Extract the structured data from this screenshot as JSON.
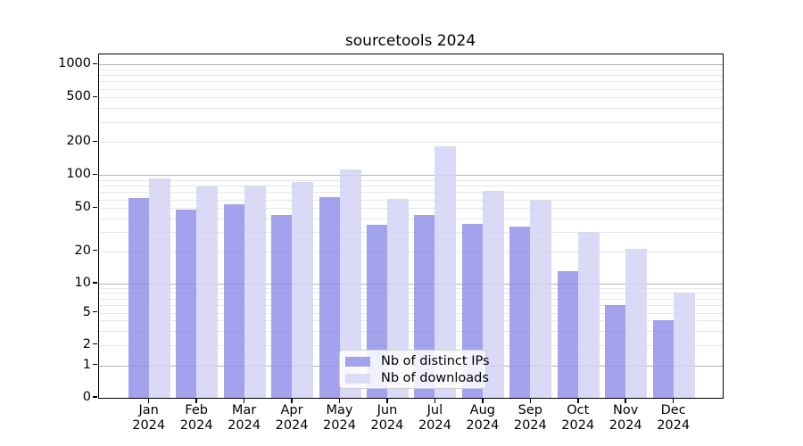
{
  "title": "sourcetools 2024",
  "chart_data": {
    "type": "bar",
    "title": "sourcetools 2024",
    "categories": [
      "Jan",
      "Feb",
      "Mar",
      "Apr",
      "May",
      "Jun",
      "Jul",
      "Aug",
      "Sep",
      "Oct",
      "Nov",
      "Dec"
    ],
    "category_year": "2024",
    "series": [
      {
        "name": "Nb of distinct IPs",
        "color_on_white": "#a2a2ee",
        "rgba": "rgba(139,139,233,0.8)",
        "values": [
          62,
          48,
          54,
          43,
          63,
          35,
          43,
          36,
          34,
          13,
          6,
          4
        ]
      },
      {
        "name": "Nb of downloads",
        "color_on_white": "#dcdcf8",
        "rgba": "rgba(211,211,246,0.85)",
        "values": [
          94,
          79,
          81,
          86,
          113,
          61,
          182,
          72,
          60,
          30,
          21,
          8
        ]
      }
    ],
    "y_axis": {
      "scale": "symlog",
      "tick_labels": [
        "0",
        "1",
        "2",
        "5",
        "10",
        "20",
        "50",
        "100",
        "200",
        "500",
        "1000"
      ],
      "tick_values": [
        0,
        1,
        2,
        5,
        10,
        20,
        50,
        100,
        200,
        500,
        1000
      ],
      "minor_grid_values": [
        3,
        4,
        6,
        7,
        8,
        9,
        30,
        40,
        60,
        70,
        80,
        90,
        300,
        400,
        600,
        700,
        800,
        900,
        2,
        5,
        20,
        50,
        200,
        500
      ],
      "major_grid_values": [
        1,
        10,
        100,
        1000
      ]
    },
    "grid": true,
    "legend_position": "lower center",
    "colors": {
      "major_grid": "#b4b4b4",
      "minor_grid": "#e7e7e7",
      "axis": "#000000",
      "background": "#ffffff"
    }
  }
}
